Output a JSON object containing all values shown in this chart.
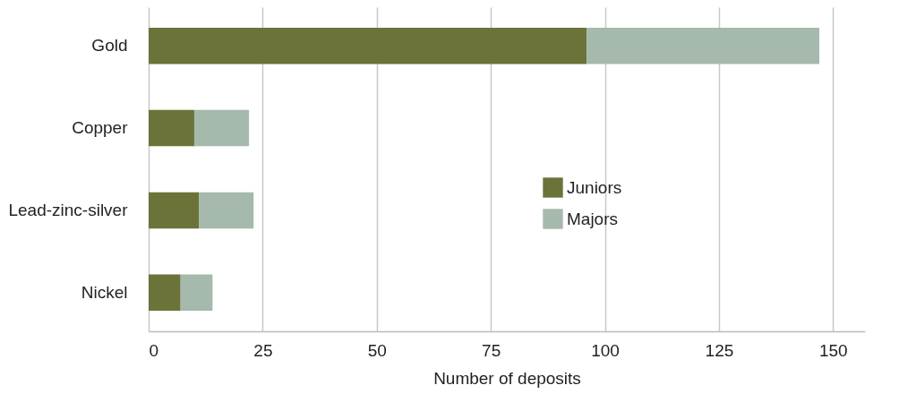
{
  "chart_data": {
    "type": "bar",
    "orientation": "horizontal",
    "stacked": true,
    "xlabel": "Number of deposits",
    "categories": [
      "Gold",
      "Copper",
      "Lead-zinc-silver",
      "Nickel"
    ],
    "series": [
      {
        "name": "Juniors",
        "color": "#6b7339",
        "values": [
          96,
          10,
          11,
          7
        ]
      },
      {
        "name": "Majors",
        "color": "#a5b9ad",
        "values": [
          51,
          12,
          12,
          7
        ]
      }
    ],
    "xlim": [
      0,
      157
    ],
    "xticks": [
      0,
      25,
      50,
      75,
      100,
      125,
      150
    ],
    "grid": "x",
    "legend": "right"
  }
}
